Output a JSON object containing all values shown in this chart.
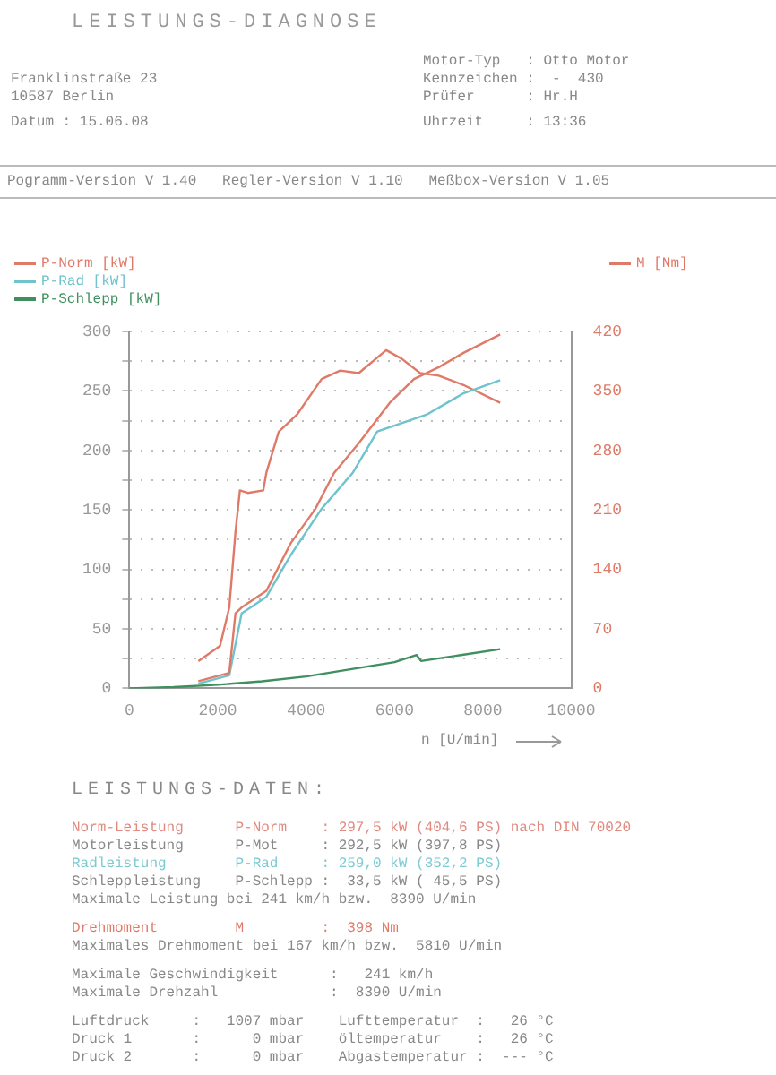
{
  "chart_data": {
    "type": "line",
    "title": "LEISTUNGS-DIAGNOSE",
    "xlabel": "n [U/min]",
    "xlim": [
      0,
      10000
    ],
    "xticks": [
      0,
      2000,
      4000,
      6000,
      8000,
      10000
    ],
    "ylim": [
      0,
      300
    ],
    "yticks": [
      0,
      {
        "value": 25,
        "label": null
      },
      50,
      {
        "value": 75,
        "label": null
      },
      100,
      {
        "value": 125,
        "label": null
      },
      150,
      {
        "value": 175,
        "label": null
      },
      200,
      {
        "value": 225,
        "label": null
      },
      250,
      {
        "value": 275,
        "label": null
      },
      300
    ],
    "y2lim": [
      0,
      420
    ],
    "y2ticks": [
      0,
      70,
      140,
      210,
      280,
      350,
      420
    ],
    "grid": "y",
    "legend": "top",
    "line_style": "solid",
    "marker": "none",
    "series": [
      {
        "name": "P-Norm [kW]",
        "color": "#e07a68",
        "x": [
          1560,
          2260,
          2400,
          2540,
          3100,
          3650,
          4210,
          4630,
          5190,
          5890,
          6440,
          7000,
          7560,
          8390
        ],
        "values": [
          6,
          13,
          63,
          68,
          82,
          122,
          151,
          181,
          206,
          240,
          260,
          270,
          282,
          297.5
        ]
      },
      {
        "name": "P-Rad [kW]",
        "color": "#6ec3cc",
        "x": [
          1560,
          2260,
          2540,
          3100,
          3650,
          4350,
          5050,
          5610,
          6720,
          7560,
          8390
        ],
        "values": [
          4,
          11,
          63,
          77,
          112,
          151,
          181,
          216,
          230,
          248,
          259
        ]
      },
      {
        "name": "P-Schlepp [kW]",
        "color": "#3f8f5f",
        "x": [
          0,
          1000,
          2000,
          3000,
          4000,
          5000,
          6000,
          6500,
          6600,
          7500,
          8390
        ],
        "values": [
          0,
          1,
          3,
          6,
          10,
          16,
          22,
          28,
          23,
          28,
          33
        ]
      },
      {
        "name": "M [Nm]",
        "axis": "y2",
        "color": "#e07a68",
        "x": [
          1560,
          2050,
          2260,
          2400,
          2500,
          2680,
          3030,
          3100,
          3380,
          3790,
          4350,
          4770,
          5190,
          5810,
          6160,
          6580,
          7000,
          7560,
          8390
        ],
        "values": [
          32,
          50,
          95,
          184,
          233,
          230,
          233,
          254,
          302,
          322,
          364,
          374,
          371,
          398,
          388,
          371,
          368,
          357,
          336
        ]
      }
    ],
    "annotations": [
      "Franklinstraße 23",
      "10587 Berlin",
      "Datum : 15.06.08",
      "Motor-Typ   : Otto Motor",
      "Kennzeichen :  -  430",
      "Prüfer      : Hr.H",
      "Uhrzeit     : 13:36",
      "Pogramm-Version V 1.40   Regler-Version V 1.10   Meßbox-Version V 1.05",
      "LEISTUNGS-DATEN:",
      "Norm-Leistung      P-Norm    : 297,5 kW (404,6 PS) nach DIN 70020",
      "Motorleistung      P-Mot     : 292,5 kW (397,8 PS)",
      "Radleistung        P-Rad     : 259,0 kW (352,2 PS)",
      "Schleppleistung    P-Schlepp :  33,5 kW ( 45,5 PS)",
      "Maximale Leistung bei 241 km/h bzw.  8390 U/min",
      "Drehmoment         M         :  398 Nm",
      "Maximales Drehmoment bei 167 km/h bzw.  5810 U/min",
      "Maximale Geschwindigkeit      :   241 km/h",
      "Maximale Drehzahl             :  8390 U/min",
      "Luftdruck     :   1007 mbar    Lufttemperatur  :   26 °C",
      "Druck 1       :      0 mbar    öltemperatur    :   26 °C",
      "Druck 2       :      0 mbar    Abgastemperatur :  --- °C"
    ]
  }
}
